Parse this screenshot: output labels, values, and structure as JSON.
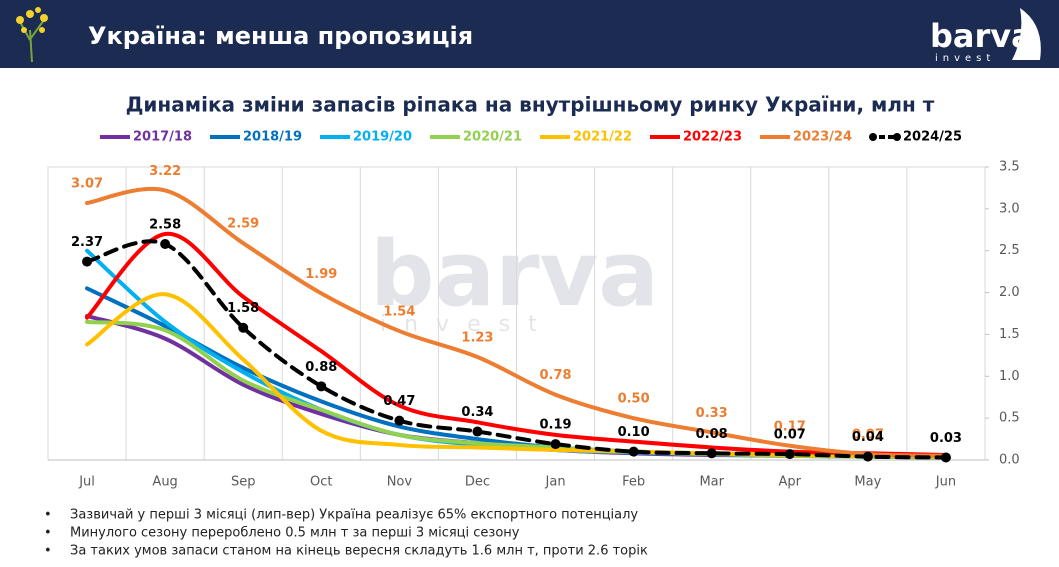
{
  "header": {
    "title": "Україна: менша пропозиція",
    "logo": {
      "name": "barva",
      "sub": "invest"
    }
  },
  "chart_data": {
    "type": "line",
    "title": "Динаміка зміни запасів ріпака на внутрішньому ринку України, млн т",
    "categories": [
      "Jul",
      "Aug",
      "Sep",
      "Oct",
      "Nov",
      "Dec",
      "Jan",
      "Feb",
      "Mar",
      "Apr",
      "May",
      "Jun"
    ],
    "ylim": [
      0,
      3.5
    ],
    "yticks": [
      {
        "value": 0,
        "label": "0.0"
      },
      0.5,
      {
        "value": 1,
        "label": "1.0"
      },
      1.5,
      {
        "value": 2,
        "label": "2.0"
      },
      2.5,
      {
        "value": 3,
        "label": "3.0"
      },
      3.5
    ],
    "grid": true,
    "series": [
      {
        "name": "2017/18",
        "color": "#7030a0",
        "values": [
          1.72,
          1.45,
          0.9,
          0.55,
          0.3,
          0.2,
          0.12,
          0.08,
          0.06,
          0.05,
          0.04,
          0.03
        ]
      },
      {
        "name": "2018/19",
        "color": "#0070c0",
        "values": [
          2.05,
          1.6,
          1.1,
          0.7,
          0.4,
          0.25,
          0.15,
          0.1,
          0.08,
          0.06,
          0.05,
          0.04
        ]
      },
      {
        "name": "2019/20",
        "color": "#00b0f0",
        "values": [
          2.5,
          1.65,
          1.05,
          0.6,
          0.3,
          0.18,
          0.12,
          0.09,
          0.07,
          0.05,
          0.04,
          0.03
        ]
      },
      {
        "name": "2020/21",
        "color": "#92d050",
        "values": [
          1.65,
          1.55,
          0.95,
          0.6,
          0.3,
          0.2,
          0.15,
          0.1,
          0.07,
          0.05,
          0.04,
          0.03
        ]
      },
      {
        "name": "2021/22",
        "color": "#ffc000",
        "values": [
          1.38,
          1.98,
          1.2,
          0.35,
          0.18,
          0.15,
          0.12,
          0.1,
          0.08,
          0.06,
          0.05,
          0.04
        ]
      },
      {
        "name": "2022/23",
        "color": "#ff0000",
        "values": [
          1.7,
          2.7,
          1.95,
          1.3,
          0.65,
          0.45,
          0.3,
          0.22,
          0.15,
          0.1,
          0.08,
          0.06
        ]
      },
      {
        "name": "2023/24",
        "color": "#ed7d31",
        "values": [
          3.07,
          3.22,
          2.59,
          1.99,
          1.54,
          1.23,
          0.78,
          0.5,
          0.33,
          0.17,
          0.07,
          0.05
        ],
        "value_labels": [
          "3.07",
          "3.22",
          "2.59",
          "1.99",
          "1.54",
          "1.23",
          "0.78",
          "0.50",
          "0.33",
          "0.17",
          "0.07",
          null
        ]
      },
      {
        "name": "2024/25",
        "color": "#000000",
        "dashed": true,
        "markers": true,
        "values": [
          2.37,
          2.58,
          1.58,
          0.88,
          0.47,
          0.34,
          0.19,
          0.1,
          0.08,
          0.07,
          0.04,
          0.03
        ],
        "value_labels": [
          "2.37",
          "2.58",
          "1.58",
          "0.88",
          "0.47",
          "0.34",
          "0.19",
          "0.10",
          "0.08",
          "0.07",
          "0.04",
          "0.03"
        ]
      }
    ]
  },
  "notes": [
    "Зазвичай у перші 3 місяці (лип-вер) Україна реалізує 65% експортного потенціалу",
    "Минулого сезону перероблено 0.5 млн т за перші 3 місяці сезону",
    "За таких умов запаси станом на кінець вересня складуть 1.6 млн т, проти 2.6 торік"
  ]
}
